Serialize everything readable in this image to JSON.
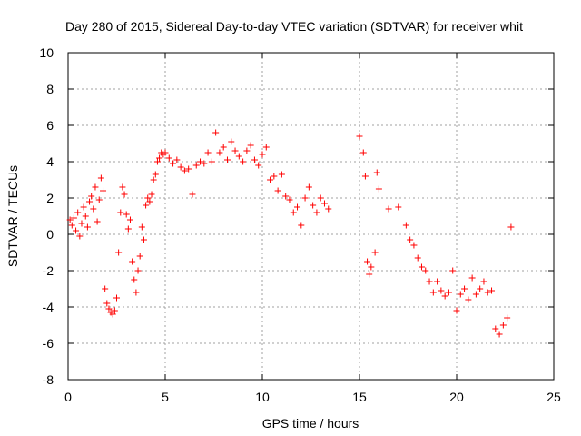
{
  "chart_data": {
    "type": "scatter",
    "title": "Day 280 of 2015, Sidereal Day-to-day VTEC variation (SDTVAR) for receiver whit",
    "xlabel": "GPS time / hours",
    "ylabel": "SDTVAR / TECUs",
    "xlim": [
      0,
      25
    ],
    "ylim": [
      -8,
      10
    ],
    "x_ticks": [
      "0",
      "5",
      "10",
      "15",
      "20",
      "25"
    ],
    "y_ticks": [
      "-8",
      "-6",
      "-4",
      "-2",
      "0",
      "2",
      "4",
      "6",
      "8",
      "10"
    ],
    "grid": true,
    "marker": "+",
    "color": "#ff0000",
    "series": [
      {
        "name": "SDTVAR",
        "x": [
          0.1,
          0.2,
          0.3,
          0.4,
          0.5,
          0.6,
          0.7,
          0.8,
          0.9,
          1.0,
          1.1,
          1.2,
          1.3,
          1.4,
          1.5,
          1.6,
          1.7,
          1.8,
          1.9,
          2.0,
          2.1,
          2.2,
          2.3,
          2.4,
          2.5,
          2.6,
          2.7,
          2.8,
          2.9,
          3.0,
          3.1,
          3.2,
          3.3,
          3.4,
          3.5,
          3.6,
          3.7,
          3.8,
          3.9,
          4.0,
          4.1,
          4.2,
          4.3,
          4.4,
          4.5,
          4.6,
          4.7,
          4.8,
          4.9,
          5.0,
          5.2,
          5.4,
          5.6,
          5.8,
          6.0,
          6.2,
          6.4,
          6.6,
          6.8,
          7.0,
          7.2,
          7.4,
          7.6,
          7.8,
          8.0,
          8.2,
          8.4,
          8.6,
          8.8,
          9.0,
          9.2,
          9.4,
          9.6,
          9.8,
          10.0,
          10.2,
          10.4,
          10.6,
          10.8,
          11.0,
          11.2,
          11.4,
          11.6,
          11.8,
          12.0,
          12.2,
          12.4,
          12.6,
          12.8,
          13.0,
          13.2,
          13.4,
          15.0,
          15.2,
          15.3,
          15.4,
          15.5,
          15.6,
          15.8,
          15.9,
          16.0,
          16.5,
          17.0,
          17.4,
          17.6,
          17.8,
          18.0,
          18.2,
          18.4,
          18.6,
          18.8,
          19.0,
          19.2,
          19.4,
          19.6,
          19.8,
          20.0,
          20.2,
          20.4,
          20.6,
          20.8,
          21.0,
          21.2,
          21.4,
          21.6,
          21.8,
          22.0,
          22.2,
          22.4,
          22.6,
          22.8
        ],
        "y": [
          0.8,
          0.5,
          0.9,
          0.2,
          1.2,
          -0.1,
          0.6,
          1.5,
          1.0,
          0.4,
          1.8,
          2.1,
          1.4,
          2.6,
          0.7,
          1.9,
          3.1,
          2.4,
          -3.0,
          -3.8,
          -4.1,
          -4.3,
          -4.4,
          -4.2,
          -3.5,
          -1.0,
          1.2,
          2.6,
          2.2,
          1.1,
          0.3,
          0.8,
          -1.5,
          -2.5,
          -3.2,
          -2.0,
          -1.2,
          0.4,
          -0.3,
          1.6,
          2.0,
          1.8,
          2.2,
          3.0,
          3.3,
          4.0,
          4.2,
          4.5,
          4.4,
          4.5,
          4.2,
          3.9,
          4.1,
          3.7,
          3.5,
          3.6,
          2.2,
          3.8,
          4.0,
          3.9,
          4.5,
          4.0,
          5.6,
          4.5,
          4.8,
          4.1,
          5.1,
          4.6,
          4.3,
          4.0,
          4.6,
          4.9,
          4.1,
          3.8,
          4.4,
          4.8,
          3.0,
          3.2,
          2.4,
          3.3,
          2.1,
          1.9,
          1.2,
          1.5,
          0.5,
          2.0,
          2.6,
          1.6,
          1.2,
          2.0,
          1.7,
          1.4,
          5.4,
          4.5,
          3.2,
          -1.5,
          -2.2,
          -1.8,
          -1.0,
          3.4,
          2.5,
          1.4,
          1.5,
          0.5,
          -0.3,
          -0.6,
          -1.3,
          -1.8,
          -2.0,
          -2.6,
          -3.2,
          -2.6,
          -3.1,
          -3.4,
          -3.2,
          -2.0,
          -4.2,
          -3.3,
          -3.0,
          -3.6,
          -2.4,
          -3.3,
          -3.0,
          -2.6,
          -3.2,
          -3.1,
          -5.2,
          -5.5,
          -5.0,
          -4.6,
          0.4
        ]
      }
    ],
    "annotations": []
  }
}
